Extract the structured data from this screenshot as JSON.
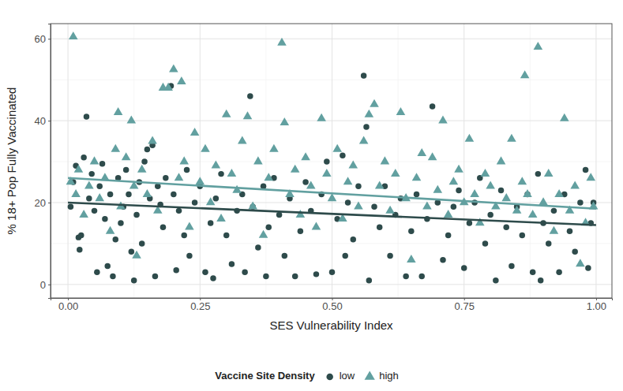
{
  "chart_data": {
    "type": "scatter",
    "x_label": "SES Vulnerability Index",
    "y_label": "% 18+ Pop Fully Vaccinated",
    "legend_title": "Vaccine Site Density",
    "legend": "bottom",
    "grid": true,
    "xlim": [
      -0.033,
      1.03
    ],
    "ylim": [
      -3.3,
      63.7
    ],
    "xticks": [
      {
        "value": 0,
        "label": "0.00"
      },
      {
        "value": 0.25,
        "label": "0.25"
      },
      {
        "value": 0.5,
        "label": "0.50"
      },
      {
        "value": 0.75,
        "label": "0.75"
      },
      {
        "value": 1,
        "label": "1.00"
      }
    ],
    "yticks": [
      0,
      20,
      40,
      60
    ],
    "series": [
      {
        "name": "low",
        "color": "#2e4b4b",
        "marker": "circle",
        "x": [
          0.005,
          0.01,
          0.015,
          0.02,
          0.022,
          0.025,
          0.03,
          0.035,
          0.04,
          0.045,
          0.05,
          0.055,
          0.06,
          0.065,
          0.07,
          0.075,
          0.08,
          0.085,
          0.09,
          0.095,
          0.1,
          0.105,
          0.11,
          0.115,
          0.12,
          0.125,
          0.13,
          0.135,
          0.14,
          0.145,
          0.15,
          0.155,
          0.16,
          0.165,
          0.17,
          0.175,
          0.18,
          0.185,
          0.195,
          0.2,
          0.205,
          0.21,
          0.22,
          0.225,
          0.23,
          0.24,
          0.25,
          0.26,
          0.27,
          0.275,
          0.28,
          0.29,
          0.3,
          0.31,
          0.32,
          0.33,
          0.335,
          0.345,
          0.35,
          0.36,
          0.37,
          0.375,
          0.38,
          0.39,
          0.4,
          0.41,
          0.42,
          0.43,
          0.44,
          0.45,
          0.46,
          0.47,
          0.48,
          0.49,
          0.5,
          0.51,
          0.52,
          0.525,
          0.53,
          0.54,
          0.55,
          0.56,
          0.565,
          0.57,
          0.58,
          0.59,
          0.6,
          0.61,
          0.62,
          0.63,
          0.64,
          0.65,
          0.66,
          0.67,
          0.68,
          0.69,
          0.7,
          0.71,
          0.72,
          0.73,
          0.74,
          0.75,
          0.76,
          0.77,
          0.78,
          0.79,
          0.8,
          0.81,
          0.82,
          0.83,
          0.84,
          0.85,
          0.86,
          0.87,
          0.88,
          0.89,
          0.895,
          0.9,
          0.91,
          0.92,
          0.93,
          0.94,
          0.95,
          0.96,
          0.97,
          0.98,
          0.985,
          0.99,
          0.995
        ],
        "values": [
          19,
          25,
          29,
          11.5,
          8.5,
          12,
          31,
          41,
          21,
          27,
          18,
          3,
          24,
          29.5,
          16,
          4.5,
          22,
          2,
          11,
          26,
          15,
          19,
          28,
          22,
          8,
          1,
          17,
          25,
          10,
          30,
          33,
          21,
          34,
          2,
          24,
          19.5,
          14,
          26,
          48.5,
          22,
          3.5,
          18,
          12,
          28,
          7,
          20,
          24,
          3,
          15,
          1.5,
          21,
          27,
          12,
          5,
          18,
          22,
          3,
          46,
          19,
          9,
          24,
          2,
          14,
          26,
          17,
          7,
          21,
          2,
          13,
          25,
          18,
          2.5,
          22,
          30,
          3,
          16,
          31.5,
          7,
          20,
          11,
          24,
          51,
          38.5,
          1,
          19,
          14,
          24,
          7,
          17,
          21,
          2,
          13,
          22,
          2,
          16,
          43.5,
          20,
          6,
          12,
          19,
          23,
          4,
          15,
          20,
          26,
          10,
          17,
          1,
          23,
          14,
          4.5,
          19,
          12,
          22,
          3,
          27,
          1,
          15,
          10,
          18,
          3,
          22,
          13,
          8,
          20,
          28,
          4,
          15,
          20
        ],
        "trend": {
          "x": [
            0,
            1
          ],
          "values": [
            20,
            14.5
          ]
        }
      },
      {
        "name": "high",
        "color": "#62a0a0",
        "marker": "triangle",
        "x": [
          0.005,
          0.01,
          0.015,
          0.02,
          0.03,
          0.04,
          0.05,
          0.06,
          0.07,
          0.08,
          0.09,
          0.095,
          0.1,
          0.11,
          0.12,
          0.125,
          0.13,
          0.14,
          0.15,
          0.16,
          0.17,
          0.18,
          0.19,
          0.2,
          0.21,
          0.215,
          0.22,
          0.23,
          0.24,
          0.25,
          0.26,
          0.27,
          0.28,
          0.29,
          0.3,
          0.31,
          0.32,
          0.33,
          0.34,
          0.35,
          0.36,
          0.37,
          0.38,
          0.39,
          0.405,
          0.41,
          0.42,
          0.43,
          0.44,
          0.45,
          0.46,
          0.47,
          0.48,
          0.49,
          0.5,
          0.51,
          0.52,
          0.53,
          0.54,
          0.55,
          0.56,
          0.57,
          0.58,
          0.59,
          0.6,
          0.61,
          0.62,
          0.63,
          0.64,
          0.65,
          0.66,
          0.67,
          0.68,
          0.69,
          0.7,
          0.71,
          0.72,
          0.73,
          0.74,
          0.75,
          0.76,
          0.77,
          0.78,
          0.79,
          0.8,
          0.81,
          0.82,
          0.83,
          0.84,
          0.85,
          0.86,
          0.865,
          0.87,
          0.88,
          0.89,
          0.9,
          0.91,
          0.92,
          0.93,
          0.94,
          0.95,
          0.96,
          0.97,
          0.98,
          0.99,
          0.995
        ],
        "values": [
          25,
          60.5,
          22,
          28,
          17,
          24,
          30,
          21,
          26,
          13,
          33,
          42,
          19,
          31,
          40,
          24,
          7,
          28,
          22,
          35,
          18,
          48,
          48,
          52.5,
          26,
          49.5,
          30,
          14,
          37,
          25,
          33,
          20,
          29,
          16,
          41.5,
          27,
          23,
          35,
          41,
          19,
          30,
          12,
          26,
          33,
          59,
          39.5,
          22,
          28,
          17,
          31,
          24,
          14,
          40.5,
          27,
          21,
          33,
          16,
          25,
          29,
          19,
          35,
          41.5,
          44,
          24,
          30,
          18,
          27,
          42,
          21,
          6,
          26,
          32,
          19,
          31,
          23,
          40,
          17,
          25,
          28,
          20,
          35.5,
          22,
          15,
          27,
          24,
          19,
          30,
          21,
          35.5,
          18,
          25,
          51,
          22,
          17,
          58,
          20,
          27,
          13,
          22,
          40.5,
          18,
          24,
          5,
          15,
          26,
          19
        ],
        "trend": {
          "x": [
            0,
            1
          ],
          "values": [
            26,
            18.5
          ]
        }
      }
    ]
  }
}
